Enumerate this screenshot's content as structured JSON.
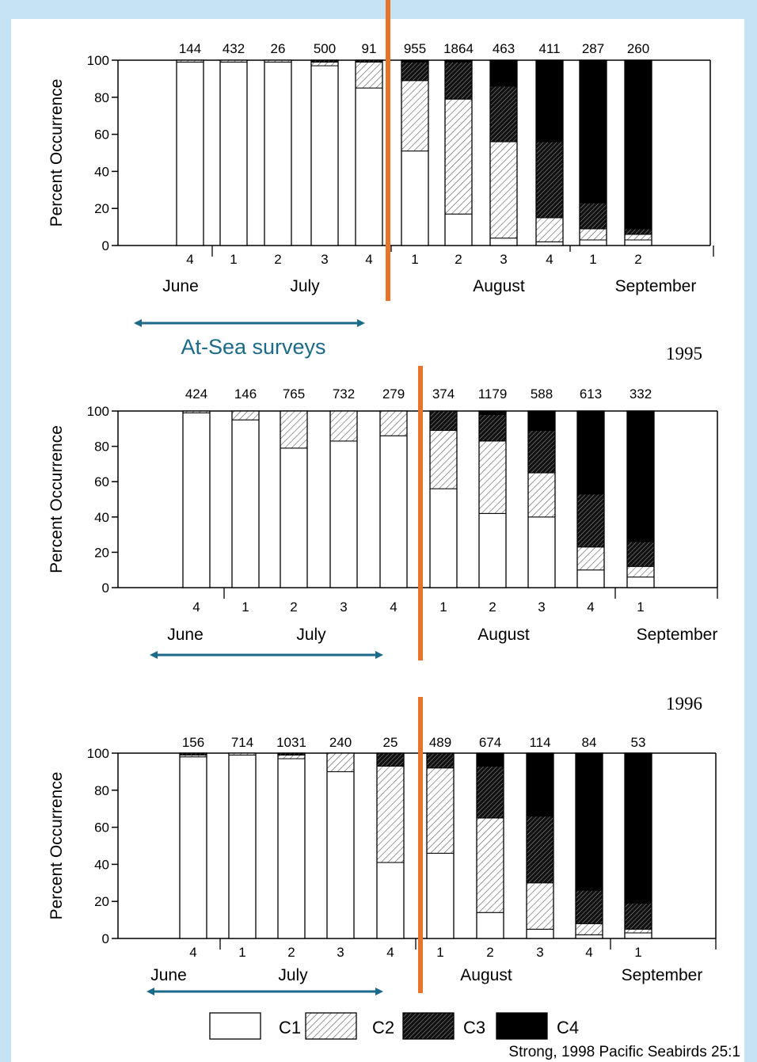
{
  "legend": {
    "items": [
      {
        "label": "C1",
        "fill": "white"
      },
      {
        "label": "C2",
        "fill": "hatch-light"
      },
      {
        "label": "C3",
        "fill": "hatch-dark"
      },
      {
        "label": "C4",
        "fill": "black"
      }
    ]
  },
  "annotation": {
    "at_sea_label": "At-Sea surveys",
    "arrow_color": "#1b6a8a",
    "divider_color": "#e8742a"
  },
  "source": "Strong, 1998 Pacific Seabirds 25:1",
  "chart_data": [
    {
      "type": "bar",
      "stacked": true,
      "year_label": "",
      "ylabel": "Percent Occurrence",
      "ylim": [
        0,
        100
      ],
      "yticks": [
        0,
        20,
        40,
        60,
        80,
        100
      ],
      "categories": [
        "4",
        "1",
        "2",
        "3",
        "4",
        "1",
        "2",
        "3",
        "4",
        "1",
        "2"
      ],
      "months": [
        {
          "label": "June",
          "from": 0,
          "to": 0
        },
        {
          "label": "July",
          "from": 1,
          "to": 4
        },
        {
          "label": "August",
          "from": 5,
          "to": 8
        },
        {
          "label": "September",
          "from": 9,
          "to": 10
        }
      ],
      "sample_sizes": [
        "144",
        "432",
        "26",
        "500",
        "91",
        "955",
        "1864",
        "463",
        "411",
        "287",
        "260"
      ],
      "series": [
        {
          "name": "C1",
          "values": [
            99,
            99,
            99,
            97,
            85,
            51,
            17,
            4,
            2,
            3,
            3
          ]
        },
        {
          "name": "C2",
          "values": [
            1,
            1,
            1,
            2,
            14,
            38,
            62,
            52,
            13,
            6,
            3
          ]
        },
        {
          "name": "C3",
          "values": [
            0,
            0,
            0,
            1,
            1,
            10,
            20,
            30,
            41,
            14,
            3
          ]
        },
        {
          "name": "C4",
          "values": [
            0,
            0,
            0,
            0,
            0,
            1,
            1,
            14,
            44,
            77,
            91
          ]
        }
      ]
    },
    {
      "type": "bar",
      "stacked": true,
      "year_label": "1995",
      "ylabel": "Percent Occurrence",
      "ylim": [
        0,
        100
      ],
      "yticks": [
        0,
        20,
        40,
        60,
        80,
        100
      ],
      "categories": [
        "4",
        "1",
        "2",
        "3",
        "4",
        "1",
        "2",
        "3",
        "4",
        "1"
      ],
      "months": [
        {
          "label": "June",
          "from": 0,
          "to": 0
        },
        {
          "label": "July",
          "from": 1,
          "to": 4
        },
        {
          "label": "August",
          "from": 5,
          "to": 8
        },
        {
          "label": "September",
          "from": 9,
          "to": 9
        }
      ],
      "sample_sizes": [
        "424",
        "146",
        "765",
        "732",
        "279",
        "374",
        "1179",
        "588",
        "613",
        "332"
      ],
      "series": [
        {
          "name": "C1",
          "values": [
            99,
            95,
            79,
            83,
            86,
            56,
            42,
            40,
            10,
            6
          ]
        },
        {
          "name": "C2",
          "values": [
            1,
            5,
            21,
            17,
            14,
            33,
            41,
            25,
            13,
            6
          ]
        },
        {
          "name": "C3",
          "values": [
            0,
            0,
            0,
            0,
            0,
            11,
            15,
            24,
            30,
            14
          ]
        },
        {
          "name": "C4",
          "values": [
            0,
            0,
            0,
            0,
            0,
            0,
            2,
            11,
            47,
            74
          ]
        }
      ]
    },
    {
      "type": "bar",
      "stacked": true,
      "year_label": "1996",
      "ylabel": "Percent Occurrence",
      "ylim": [
        0,
        100
      ],
      "yticks": [
        0,
        20,
        40,
        60,
        80,
        100
      ],
      "categories": [
        "4",
        "1",
        "2",
        "3",
        "4",
        "1",
        "2",
        "3",
        "4",
        "1"
      ],
      "months": [
        {
          "label": "June",
          "from": 0,
          "to": 0
        },
        {
          "label": "July",
          "from": 1,
          "to": 4
        },
        {
          "label": "August",
          "from": 5,
          "to": 8
        },
        {
          "label": "September",
          "from": 9,
          "to": 9
        }
      ],
      "sample_sizes": [
        "156",
        "714",
        "1031",
        "240",
        "25",
        "489",
        "674",
        "114",
        "84",
        "53"
      ],
      "series": [
        {
          "name": "C1",
          "values": [
            98,
            99,
            97,
            90,
            41,
            46,
            14,
            5,
            2,
            3
          ]
        },
        {
          "name": "C2",
          "values": [
            1,
            1,
            2,
            10,
            52,
            46,
            51,
            25,
            6,
            2
          ]
        },
        {
          "name": "C3",
          "values": [
            1,
            0,
            1,
            0,
            7,
            8,
            28,
            36,
            18,
            14
          ]
        },
        {
          "name": "C4",
          "values": [
            0,
            0,
            0,
            0,
            0,
            0,
            7,
            34,
            74,
            81
          ]
        }
      ]
    }
  ]
}
